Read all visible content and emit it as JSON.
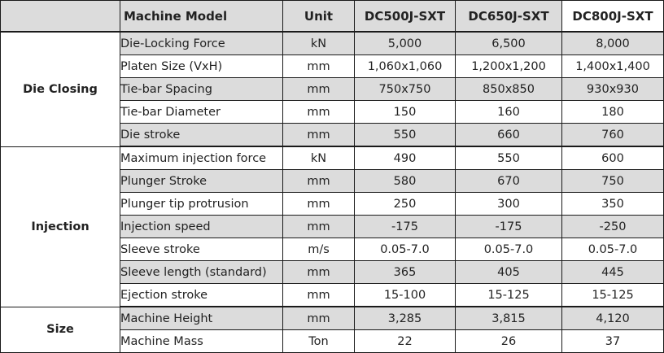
{
  "header": {
    "model_label": "Machine Model",
    "unit_label": "Unit",
    "models": [
      "DC500J-SXT",
      "DC650J-SXT",
      "DC800J-SXT"
    ]
  },
  "groups": [
    {
      "name": "Die Closing",
      "rows": [
        {
          "param": "Die-Locking Force",
          "unit": "kN",
          "values": [
            "5,000",
            "6,500",
            "8,000"
          ]
        },
        {
          "param": "Platen Size (VxH)",
          "unit": "mm",
          "values": [
            "1,060x1,060",
            "1,200x1,200",
            "1,400x1,400"
          ]
        },
        {
          "param": "Tie-bar Spacing",
          "unit": "mm",
          "values": [
            "750x750",
            "850x850",
            "930x930"
          ]
        },
        {
          "param": "Tie-bar Diameter",
          "unit": "mm",
          "values": [
            "150",
            "160",
            "180"
          ]
        },
        {
          "param": "Die stroke",
          "unit": "mm",
          "values": [
            "550",
            "660",
            "760"
          ]
        }
      ]
    },
    {
      "name": "Injection",
      "rows": [
        {
          "param": "Maximum injection force",
          "unit": "kN",
          "values": [
            "490",
            "550",
            "600"
          ]
        },
        {
          "param": "Plunger Stroke",
          "unit": "mm",
          "values": [
            "580",
            "670",
            "750"
          ]
        },
        {
          "param": "Plunger tip protrusion",
          "unit": "mm",
          "values": [
            "250",
            "300",
            "350"
          ]
        },
        {
          "param": "Injection speed",
          "unit": "mm",
          "values": [
            "-175",
            "-175",
            "-250"
          ]
        },
        {
          "param": "Sleeve stroke",
          "unit": "m/s",
          "values": [
            "0.05-7.0",
            "0.05-7.0",
            "0.05-7.0"
          ]
        },
        {
          "param": "Sleeve length (standard)",
          "unit": "mm",
          "values": [
            "365",
            "405",
            "445"
          ]
        },
        {
          "param": "Ejection stroke",
          "unit": "mm",
          "values": [
            "15-100",
            "15-125",
            "15-125"
          ]
        }
      ]
    },
    {
      "name": "Size",
      "rows": [
        {
          "param": "Machine Height",
          "unit": "mm",
          "values": [
            "3,285",
            "3,815",
            "4,120"
          ]
        },
        {
          "param": "Machine Mass",
          "unit": "Ton",
          "values": [
            "22",
            "26",
            "37"
          ]
        }
      ]
    }
  ]
}
